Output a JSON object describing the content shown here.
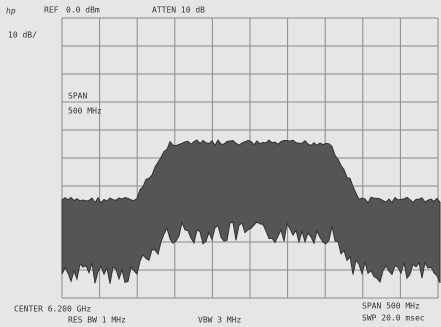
{
  "header": {
    "brand": "hp",
    "ref_label": "REF",
    "ref_value": "0.0 dBm",
    "atten": "ATTEN 10 dB",
    "scale": "10 dB/"
  },
  "overlay": {
    "span_label": "SPAN",
    "span_value": "500 MHz"
  },
  "footer": {
    "center": "CENTER 6.200 GHz",
    "res_bw": "RES BW 1 MHz",
    "vbw": "VBW 3 MHz",
    "span": "SPAN 500 MHz",
    "sweep": "SWP 20.0 msec"
  }
}
